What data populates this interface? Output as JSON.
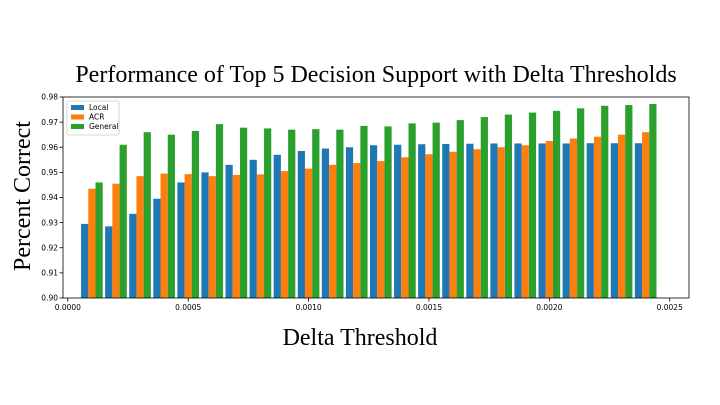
{
  "chart_data": {
    "type": "bar",
    "title": "Performance of Top 5 Decision Support with Delta Thresholds",
    "xlabel": "Delta Threshold",
    "ylabel": "Percent Correct",
    "ylim": [
      0.9,
      0.98
    ],
    "xlim": [
      -2e-05,
      0.00258
    ],
    "yticks": [
      "0.90",
      "0.91",
      "0.92",
      "0.93",
      "0.94",
      "0.95",
      "0.96",
      "0.97",
      "0.98"
    ],
    "xticks": [
      "0.0000",
      "0.0005",
      "0.0010",
      "0.0015",
      "0.0020",
      "0.0025"
    ],
    "x": [
      0.0001,
      0.0002,
      0.0003,
      0.0004,
      0.0005,
      0.0006,
      0.0007,
      0.0008,
      0.0009,
      0.001,
      0.0011,
      0.0012,
      0.0013,
      0.0014,
      0.0015,
      0.0016,
      0.0017,
      0.0018,
      0.0019,
      0.002,
      0.0021,
      0.0022,
      0.0023,
      0.0024
    ],
    "series": [
      {
        "name": "Local",
        "color": "#1f77b4",
        "values": [
          0.9295,
          0.9285,
          0.9335,
          0.9395,
          0.946,
          0.95,
          0.953,
          0.955,
          0.957,
          0.9585,
          0.9595,
          0.96,
          0.9608,
          0.961,
          0.9612,
          0.9613,
          0.9614,
          0.9615,
          0.9615,
          0.9615,
          0.9615,
          0.9616,
          0.9616,
          0.9616
        ]
      },
      {
        "name": "ACR",
        "color": "#ff7f0e",
        "values": [
          0.9435,
          0.9455,
          0.9485,
          0.9495,
          0.9493,
          0.9485,
          0.949,
          0.9492,
          0.9505,
          0.9515,
          0.953,
          0.9537,
          0.9545,
          0.956,
          0.9572,
          0.9582,
          0.9592,
          0.96,
          0.9608,
          0.9625,
          0.9635,
          0.9642,
          0.965,
          0.966
        ]
      },
      {
        "name": "General",
        "color": "#2ca02c",
        "values": [
          0.946,
          0.961,
          0.966,
          0.965,
          0.9665,
          0.9692,
          0.9678,
          0.9675,
          0.967,
          0.9672,
          0.967,
          0.9685,
          0.9683,
          0.9695,
          0.9698,
          0.9708,
          0.972,
          0.973,
          0.9738,
          0.9745,
          0.9755,
          0.9765,
          0.9768,
          0.9772
        ]
      }
    ],
    "legend_position": "top-left",
    "grid": false
  }
}
